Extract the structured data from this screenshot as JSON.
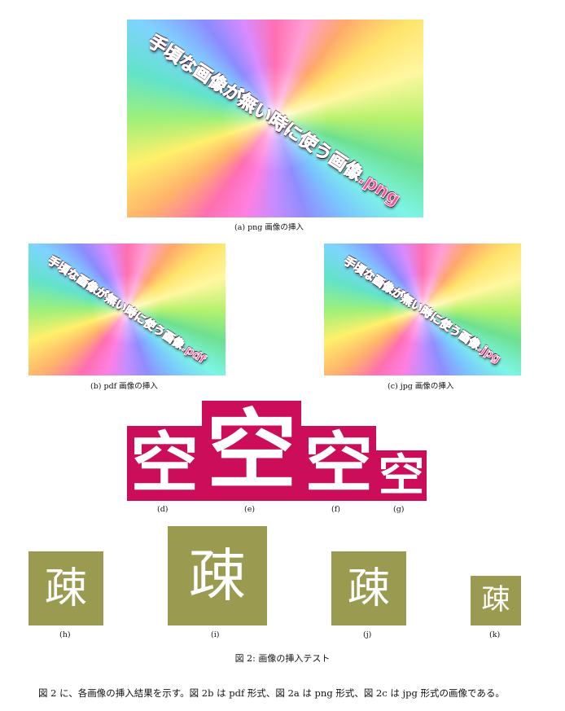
{
  "figure_a": {
    "overlay_text": "手頃な画像が無い時に使う画像.png",
    "caption": "(a) png 画像の挿入"
  },
  "figure_b": {
    "overlay_text": "手頃な画像が無い時に使う画像.pdf",
    "caption": "(b) pdf 画像の挿入"
  },
  "figure_c": {
    "overlay_text": "手頃な画像が無い時に使う画像.jpg",
    "caption": "(c) jpg 画像の挿入"
  },
  "seal_char": "空",
  "seal_captions": {
    "d": "(d)",
    "e": "(e)",
    "f": "(f)",
    "g": "(g)"
  },
  "so_char": "疎",
  "so_captions": {
    "h": "(h)",
    "i": "(i)",
    "j": "(j)",
    "k": "(k)"
  },
  "figure_caption": "図 2: 画像の挿入テスト",
  "body_text": "図 2 に、各画像の挿入結果を示す。図 2b は pdf 形式、図 2a は png 形式、図 2c は jpg 形式の画像である。",
  "colors": {
    "seal": "#cc0e5a",
    "so_bg": "#9a9b50",
    "overlay_text": "#ff4f9a"
  }
}
